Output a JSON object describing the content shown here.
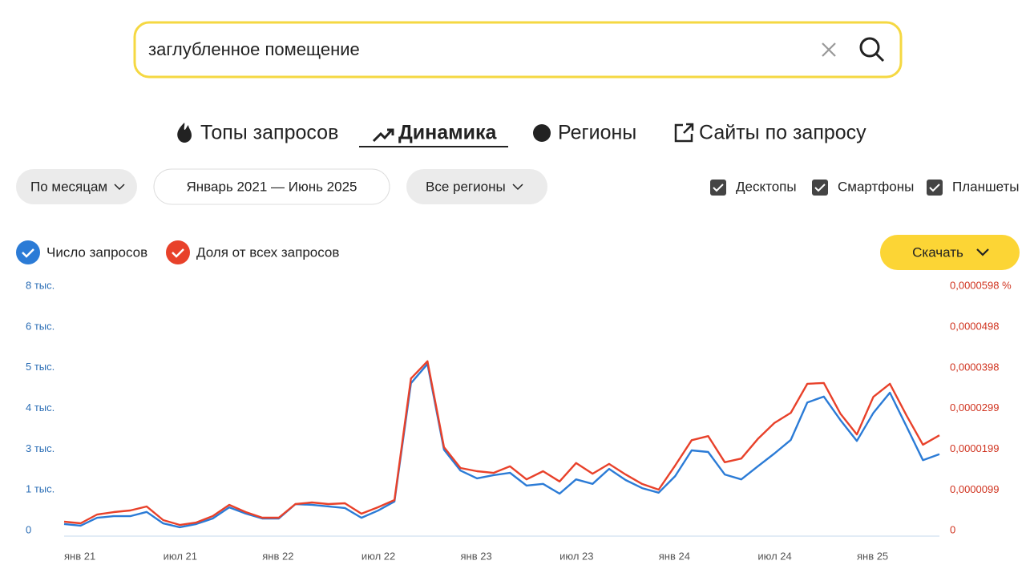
{
  "search": {
    "query": "заглубленное помещение"
  },
  "tabs": [
    "Топы запросов",
    "Динамика",
    "Регионы",
    "Сайты по запросу"
  ],
  "filters": {
    "period": "По месяцам",
    "range": "Январь 2021 — Июнь 2025",
    "region": "Все регионы"
  },
  "devices": [
    "Десктопы",
    "Смартфоны",
    "Планшеты"
  ],
  "download": "Скачать",
  "chart_data": {
    "type": "line",
    "categories": [
      "янв 21",
      null,
      null,
      null,
      null,
      null,
      "июл 21",
      null,
      null,
      null,
      null,
      null,
      "янв 22",
      null,
      null,
      null,
      null,
      null,
      "июл 22",
      null,
      null,
      null,
      null,
      null,
      "янв 23",
      null,
      null,
      null,
      null,
      null,
      "июл 23",
      null,
      null,
      null,
      null,
      null,
      "янв 24",
      null,
      null,
      null,
      null,
      null,
      "июл 24",
      null,
      null,
      null,
      null,
      null,
      "янв 25",
      null,
      null,
      null,
      null,
      null
    ],
    "series": [
      {
        "name": "Число запросов",
        "color": "#2b7bd6",
        "values": [
          200,
          150,
          390,
          440,
          440,
          570,
          220,
          100,
          200,
          370,
          710,
          520,
          370,
          370,
          810,
          790,
          740,
          690,
          390,
          610,
          890,
          4520,
          5110,
          2480,
          1840,
          1600,
          1700,
          1770,
          1380,
          1430,
          1130,
          1570,
          1430,
          1890,
          1550,
          1300,
          1160,
          1670,
          2460,
          2410,
          1720,
          1570,
          1970,
          2360,
          2780,
          3930,
          4110,
          3390,
          2750,
          3610,
          4230,
          3200,
          2160,
          2340
        ]
      },
      {
        "name": "Доля от всех запросов",
        "color": "#e8412a",
        "axis": "y2",
        "values": [
          2.16e-06,
          1.76e-06,
          3.92e-06,
          4.51e-06,
          4.9e-06,
          5.88e-06,
          2.55e-06,
          1.37e-06,
          1.96e-06,
          3.53e-06,
          6.27e-06,
          4.51e-06,
          3.14e-06,
          3.14e-06,
          6.47e-06,
          6.86e-06,
          6.47e-06,
          6.67e-06,
          4.12e-06,
          5.69e-06,
          7.45e-06,
          3.72e-05,
          4.14e-05,
          2.04e-05,
          1.53e-05,
          1.45e-05,
          1.41e-05,
          1.57e-05,
          1.25e-05,
          1.45e-05,
          1.2e-05,
          1.65e-05,
          1.39e-05,
          1.63e-05,
          1.37e-05,
          1.14e-05,
          1e-05,
          1.59e-05,
          2.21e-05,
          2.31e-05,
          1.67e-05,
          1.76e-05,
          2.24e-05,
          2.63e-05,
          2.88e-05,
          3.59e-05,
          3.61e-05,
          2.86e-05,
          2.35e-05,
          3.27e-05,
          3.59e-05,
          2.82e-05,
          2.1e-05,
          2.33e-05
        ]
      }
    ],
    "ylim": [
      0,
      7500
    ],
    "yticks": [
      0,
      {
        "value": 1250,
        "label": "1 тыс."
      },
      {
        "value": 2500,
        "label": "3 тыс."
      },
      {
        "value": 3750,
        "label": "4 тыс."
      },
      {
        "value": 5000,
        "label": "5 тыс."
      },
      {
        "value": 6250,
        "label": "6 тыс."
      },
      {
        "value": 7500,
        "label": "8 тыс."
      }
    ],
    "y2lim": [
      0,
      5.98e-05
    ],
    "y2ticks": [
      0,
      {
        "value": 9.9e-06,
        "label": "0,0000099"
      },
      {
        "value": 1.99e-05,
        "label": "0,0000199"
      },
      {
        "value": 2.99e-05,
        "label": "0,0000299"
      },
      {
        "value": 3.98e-05,
        "label": "0,0000398"
      },
      {
        "value": 4.98e-05,
        "label": "0,0000498"
      },
      {
        "value": 5.98e-05,
        "label": "0,0000598 %"
      }
    ]
  }
}
